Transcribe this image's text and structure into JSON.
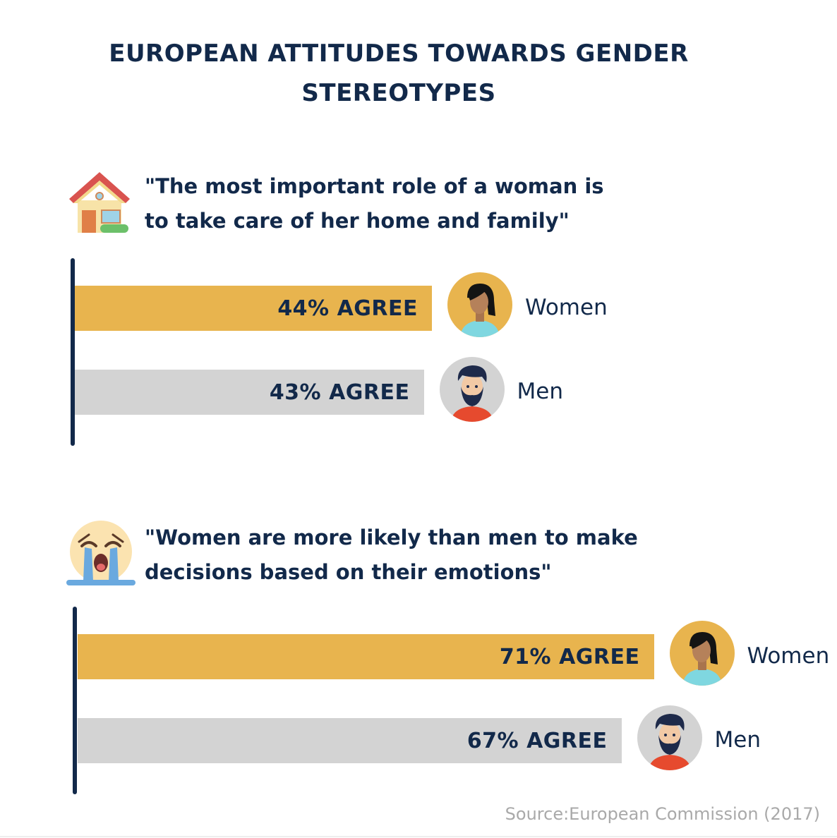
{
  "header": {
    "title_line1": "EUROPEAN ATTITUDES TOWARDS GENDER",
    "title_line2": "STEREOTYPES"
  },
  "colors": {
    "women_bar": "#e8b44e",
    "men_bar": "#d3d3d3",
    "text": "#12294a",
    "axis": "#12294a"
  },
  "source": "Source:European Commission (2017)",
  "chart_data": [
    {
      "type": "bar",
      "title": "\"The most important role of a woman is to take care of her home and family\"",
      "title_line1": "\"The most important role of a woman is",
      "title_line2": "to take care of her home and family\"",
      "icon": "house-icon",
      "categories": [
        "Women",
        "Men"
      ],
      "values": [
        44,
        43
      ],
      "labels": [
        "44% AGREE",
        "43% AGREE"
      ],
      "avatars": [
        "woman-avatar-icon",
        "man-avatar-icon"
      ]
    },
    {
      "type": "bar",
      "title": "\"Women are more likely than men to make decisions based on their emotions\"",
      "title_line1": "\"Women are more likely than men to make",
      "title_line2": "decisions based on their emotions\"",
      "icon": "crying-face-icon",
      "categories": [
        "Women",
        "Men"
      ],
      "values": [
        71,
        67
      ],
      "labels": [
        "71% AGREE",
        "67% AGREE"
      ],
      "avatars": [
        "woman-avatar-icon",
        "man-avatar-icon"
      ]
    }
  ]
}
